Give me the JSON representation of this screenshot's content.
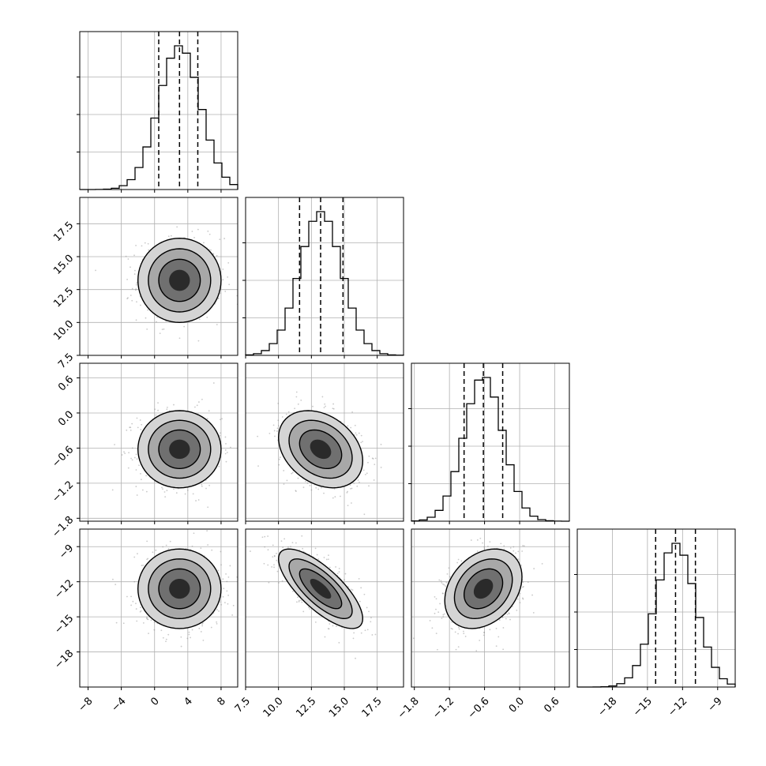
{
  "chart_data": {
    "type": "corner",
    "n_params": 4,
    "axis_ranges": [
      [
        -9,
        10
      ],
      [
        7.5,
        19.5
      ],
      [
        -1.85,
        0.85
      ],
      [
        -21,
        -7.5
      ]
    ],
    "ticks": [
      {
        "values": [
          -8,
          -4,
          0,
          4,
          8
        ],
        "labels": [
          "−8",
          "−4",
          "0",
          "4",
          "8"
        ]
      },
      {
        "values": [
          7.5,
          10.0,
          12.5,
          15.0,
          17.5
        ],
        "labels": [
          "7.5",
          "10.0",
          "12.5",
          "15.0",
          "17.5"
        ]
      },
      {
        "values": [
          -1.8,
          -1.2,
          -0.6,
          0.0,
          0.6
        ],
        "labels": [
          "−1.8",
          "−1.2",
          "−0.6",
          "0.0",
          "0.6"
        ]
      },
      {
        "values": [
          -18,
          -15,
          -12,
          -9
        ],
        "labels": [
          "−18",
          "−15",
          "−12",
          "−9"
        ]
      }
    ],
    "params": [
      {
        "mean": 3.0,
        "std": 2.5
      },
      {
        "mean": 13.2,
        "std": 1.6
      },
      {
        "mean": -0.62,
        "std": 0.33
      },
      {
        "mean": -12.6,
        "std": 1.7
      }
    ],
    "quantiles": [
      [
        0.5,
        3.0,
        5.2
      ],
      [
        11.6,
        13.2,
        14.9
      ],
      [
        -0.95,
        -0.62,
        -0.29
      ],
      [
        -14.3,
        -12.6,
        -10.9
      ]
    ],
    "correlations": [
      [
        1,
        0,
        0,
        0
      ],
      [
        0,
        1,
        -0.3,
        -0.75
      ],
      [
        0,
        -0.3,
        1,
        0.3
      ],
      [
        0,
        -0.75,
        0.3,
        1
      ]
    ],
    "histogram_bins": 20,
    "grid": true,
    "contour_levels_sigma": [
      0.5,
      1.0,
      1.5,
      2.0
    ]
  }
}
